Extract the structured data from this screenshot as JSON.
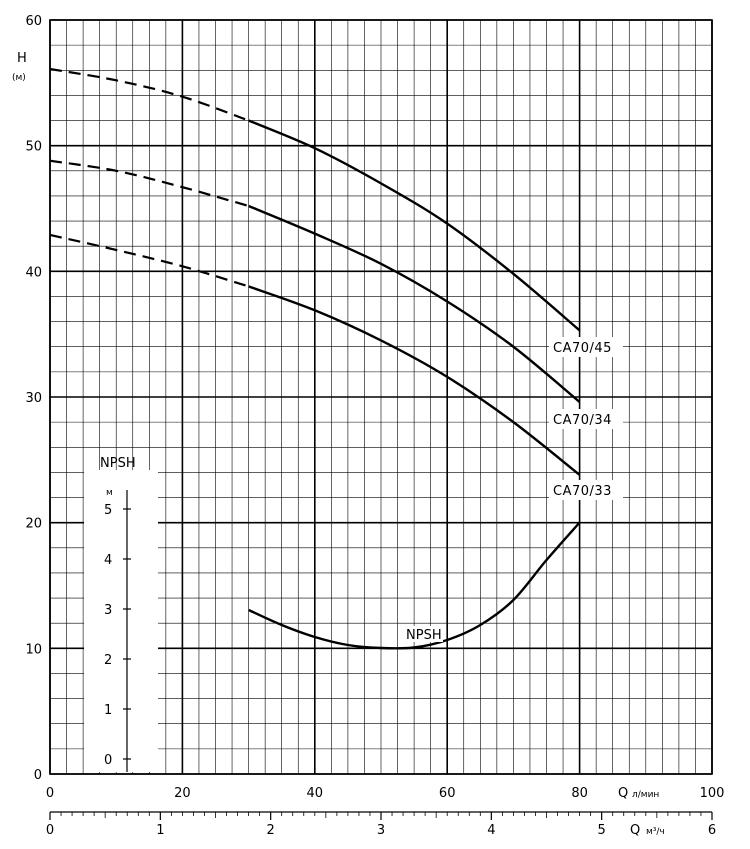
{
  "chart_data": {
    "type": "line",
    "y_axis": {
      "label": "H",
      "unit": "(м)",
      "range": [
        0,
        60
      ],
      "ticks": [
        "0",
        "10",
        "20",
        "30",
        "40",
        "50",
        "60"
      ]
    },
    "x_axis_primary": {
      "label": "Q",
      "unit": "л/мин",
      "range": [
        0,
        100
      ],
      "ticks": [
        "0",
        "20",
        "40",
        "60",
        "80",
        "100"
      ]
    },
    "x_axis_secondary": {
      "label": "Q",
      "unit": "м³/ч",
      "range": [
        0,
        6
      ],
      "ticks": [
        "0",
        "1",
        "2",
        "3",
        "4",
        "5",
        "6"
      ]
    },
    "series": [
      {
        "name": "CA70/45",
        "dashed": {
          "x": [
            0,
            10,
            20,
            30
          ],
          "y": [
            56.1,
            55.2,
            53.9,
            52.0
          ]
        },
        "solid": {
          "x": [
            30,
            40,
            50,
            60,
            70,
            80
          ],
          "y": [
            52.0,
            49.8,
            47.0,
            43.8,
            39.8,
            35.3
          ]
        }
      },
      {
        "name": "CA70/34",
        "dashed": {
          "x": [
            0,
            10,
            20,
            30
          ],
          "y": [
            48.8,
            48.0,
            46.7,
            45.2
          ]
        },
        "solid": {
          "x": [
            30,
            40,
            50,
            60,
            70,
            80
          ],
          "y": [
            45.2,
            43.0,
            40.6,
            37.6,
            34.0,
            29.6
          ]
        }
      },
      {
        "name": "CA70/33",
        "dashed": {
          "x": [
            0,
            10,
            20,
            30
          ],
          "y": [
            42.9,
            41.7,
            40.4,
            38.8
          ]
        },
        "solid": {
          "x": [
            30,
            40,
            50,
            60,
            70,
            80
          ],
          "y": [
            38.8,
            36.9,
            34.5,
            31.6,
            28.0,
            23.8
          ]
        }
      }
    ],
    "npsh": {
      "title": "NPSH",
      "unit": "м",
      "ticks": [
        "0",
        "1",
        "2",
        "3",
        "4",
        "5"
      ],
      "curve_label": "NPSH",
      "x": [
        30,
        35,
        40,
        45,
        50,
        55,
        60,
        65,
        70,
        75,
        80
      ],
      "y": [
        3.0,
        2.7,
        2.46,
        2.3,
        2.24,
        2.25,
        2.4,
        2.7,
        3.2,
        4.0,
        4.75
      ]
    },
    "grid": true,
    "colors": {
      "line": "#000000",
      "grid": "#000000",
      "background": "#ffffff"
    }
  }
}
